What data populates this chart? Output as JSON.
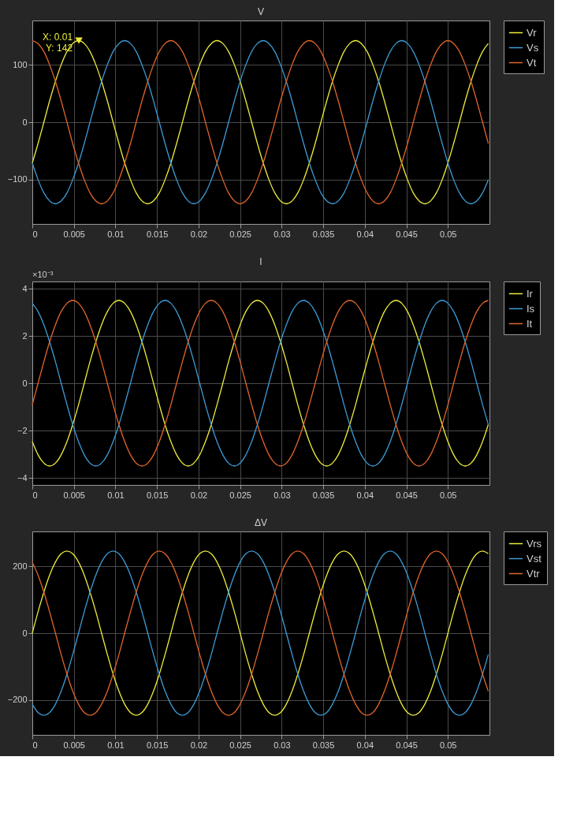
{
  "chart_data": [
    {
      "type": "line",
      "title": "V",
      "grid": true,
      "legend": "right",
      "xlim": [
        0,
        0.055
      ],
      "xticks": [
        0,
        0.005,
        0.01,
        0.015,
        0.02,
        0.025,
        0.03,
        0.035,
        0.04,
        0.045,
        0.05
      ],
      "ylim": [
        -177,
        177
      ],
      "yticks": [
        -100,
        0,
        100
      ],
      "x": [
        0,
        0.00069,
        0.00139,
        0.00208,
        0.00278,
        0.00347,
        0.00417,
        0.00486,
        0.00556,
        0.00625,
        0.00694,
        0.00764,
        0.00833,
        0.00903,
        0.00972,
        0.01042,
        0.01111,
        0.01181,
        0.0125,
        0.01319,
        0.01389,
        0.01458,
        0.01528,
        0.01597,
        0.01667,
        0.01736,
        0.01806,
        0.01875,
        0.01944,
        0.02014,
        0.02083,
        0.02153,
        0.02222,
        0.02292,
        0.02361,
        0.02431,
        0.025,
        0.02569,
        0.02639,
        0.02708,
        0.02778,
        0.02847,
        0.02917,
        0.02986,
        0.03056,
        0.03125,
        0.03194,
        0.03264,
        0.03333,
        0.03403,
        0.03472,
        0.03542,
        0.03611,
        0.03681,
        0.0375,
        0.03819,
        0.03889,
        0.03958,
        0.04028,
        0.04097,
        0.04167,
        0.04236,
        0.04306,
        0.04375,
        0.04444,
        0.04514,
        0.04583,
        0.04653,
        0.04722,
        0.04792,
        0.04861,
        0.04931,
        0.05,
        0.05069,
        0.05139,
        0.05208,
        0.05278,
        0.05347,
        0.05417,
        0.05486
      ],
      "series": [
        {
          "name": "Vr",
          "color": "#eded3a",
          "values": [
            -71,
            -37,
            0,
            37,
            71,
            100,
            123,
            137,
            142,
            137,
            123,
            100,
            71,
            37,
            0,
            -37,
            -71,
            -100,
            -123,
            -137,
            -142,
            -137,
            -123,
            -100,
            -71,
            -37,
            0,
            37,
            71,
            100,
            123,
            137,
            142,
            137,
            123,
            100,
            71,
            37,
            0,
            -37,
            -71,
            -100,
            -123,
            -137,
            -142,
            -137,
            -123,
            -100,
            -71,
            -37,
            0,
            37,
            71,
            100,
            123,
            137,
            142,
            137,
            123,
            100,
            71,
            37,
            0,
            -37,
            -71,
            -100,
            -123,
            -137,
            -142,
            -137,
            -123,
            -100,
            -71,
            -37,
            0,
            37,
            71,
            100,
            123,
            137
          ]
        },
        {
          "name": "Vs",
          "color": "#3d9bd6",
          "values": [
            -71,
            -100,
            -123,
            -137,
            -142,
            -137,
            -123,
            -100,
            -71,
            -37,
            0,
            37,
            71,
            100,
            123,
            137,
            142,
            137,
            123,
            100,
            71,
            37,
            0,
            -37,
            -71,
            -100,
            -123,
            -137,
            -142,
            -137,
            -123,
            -100,
            -71,
            -37,
            0,
            37,
            71,
            100,
            123,
            137,
            142,
            137,
            123,
            100,
            71,
            37,
            0,
            -37,
            -71,
            -100,
            -123,
            -137,
            -142,
            -137,
            -123,
            -100,
            -71,
            -37,
            0,
            37,
            71,
            100,
            123,
            137,
            142,
            137,
            123,
            100,
            71,
            37,
            0,
            -37,
            -71,
            -100,
            -123,
            -137,
            -142,
            -137,
            -123,
            -100
          ]
        },
        {
          "name": "Vt",
          "color": "#e0652b",
          "values": [
            142,
            137,
            123,
            100,
            71,
            37,
            0,
            -37,
            -71,
            -100,
            -123,
            -137,
            -142,
            -137,
            -123,
            -100,
            -71,
            -37,
            0,
            37,
            71,
            100,
            123,
            137,
            142,
            137,
            123,
            100,
            71,
            37,
            0,
            -37,
            -71,
            -100,
            -123,
            -137,
            -142,
            -137,
            -123,
            -100,
            -71,
            -37,
            0,
            37,
            71,
            100,
            123,
            137,
            142,
            137,
            123,
            100,
            71,
            37,
            0,
            -37,
            -71,
            -100,
            -123,
            -137,
            -142,
            -137,
            -123,
            -100,
            -71,
            -37,
            0,
            37,
            71,
            100,
            123,
            137,
            142,
            137,
            123,
            100,
            71,
            37,
            0,
            -37
          ]
        }
      ],
      "annotations": [
        {
          "text": "X: 0.01\nY: 142",
          "x": 0.0056,
          "y": 142
        }
      ]
    },
    {
      "type": "line",
      "title": "I",
      "grid": true,
      "legend": "right",
      "xlim": [
        0,
        0.055
      ],
      "xticks": [
        0,
        0.005,
        0.01,
        0.015,
        0.02,
        0.025,
        0.03,
        0.035,
        0.04,
        0.045,
        0.05
      ],
      "ylim": [
        -4.3,
        4.3
      ],
      "yticks": [
        -4,
        -2,
        0,
        2,
        4
      ],
      "x": [
        0,
        0.00069,
        0.00139,
        0.00208,
        0.00278,
        0.00347,
        0.00417,
        0.00486,
        0.00556,
        0.00625,
        0.00694,
        0.00764,
        0.00833,
        0.00903,
        0.00972,
        0.01042,
        0.01111,
        0.01181,
        0.0125,
        0.01319,
        0.01389,
        0.01458,
        0.01528,
        0.01597,
        0.01667,
        0.01736,
        0.01806,
        0.01875,
        0.01944,
        0.02014,
        0.02083,
        0.02153,
        0.02222,
        0.02292,
        0.02361,
        0.02431,
        0.025,
        0.02569,
        0.02639,
        0.02708,
        0.02778,
        0.02847,
        0.02917,
        0.02986,
        0.03056,
        0.03125,
        0.03194,
        0.03264,
        0.03333,
        0.03403,
        0.03472,
        0.03542,
        0.03611,
        0.03681,
        0.0375,
        0.03819,
        0.03889,
        0.03958,
        0.04028,
        0.04097,
        0.04167,
        0.04236,
        0.04306,
        0.04375,
        0.04444,
        0.04514,
        0.04583,
        0.04653,
        0.04722,
        0.04792,
        0.04861,
        0.04931,
        0.05,
        0.05069,
        0.05139,
        0.05208,
        0.05278,
        0.05347,
        0.05417,
        0.05486
      ],
      "series": [
        {
          "name": "Ir",
          "color": "#eded3a",
          "values": [
            -2.47,
            -3.03,
            -3.38,
            -3.5,
            -3.38,
            -3.03,
            -2.47,
            -1.75,
            -0.91,
            0,
            0.91,
            1.75,
            2.47,
            3.03,
            3.38,
            3.5,
            3.38,
            3.03,
            2.47,
            1.75,
            0.91,
            0,
            -0.91,
            -1.75,
            -2.47,
            -3.03,
            -3.38,
            -3.5,
            -3.38,
            -3.03,
            -2.47,
            -1.75,
            -0.91,
            0,
            0.91,
            1.75,
            2.47,
            3.03,
            3.38,
            3.5,
            3.38,
            3.03,
            2.47,
            1.75,
            0.91,
            0,
            -0.91,
            -1.75,
            -2.47,
            -3.03,
            -3.38,
            -3.5,
            -3.38,
            -3.03,
            -2.47,
            -1.75,
            -0.91,
            0,
            0.91,
            1.75,
            2.47,
            3.03,
            3.38,
            3.5,
            3.38,
            3.03,
            2.47,
            1.75,
            0.91,
            0,
            -0.91,
            -1.75,
            -2.47,
            -3.03,
            -3.38,
            -3.5,
            -3.38,
            -3.03,
            -2.47,
            -1.75
          ]
        },
        {
          "name": "Is",
          "color": "#3d9bd6",
          "values": [
            3.38,
            3.03,
            2.47,
            1.75,
            0.91,
            0,
            -0.91,
            -1.75,
            -2.47,
            -3.03,
            -3.38,
            -3.5,
            -3.38,
            -3.03,
            -2.47,
            -1.75,
            -0.91,
            0,
            0.91,
            1.75,
            2.47,
            3.03,
            3.38,
            3.5,
            3.38,
            3.03,
            2.47,
            1.75,
            0.91,
            0,
            -0.91,
            -1.75,
            -2.47,
            -3.03,
            -3.38,
            -3.5,
            -3.38,
            -3.03,
            -2.47,
            -1.75,
            -0.91,
            0,
            0.91,
            1.75,
            2.47,
            3.03,
            3.38,
            3.5,
            3.38,
            3.03,
            2.47,
            1.75,
            0.91,
            0,
            -0.91,
            -1.75,
            -2.47,
            -3.03,
            -3.38,
            -3.5,
            -3.38,
            -3.03,
            -2.47,
            -1.75,
            -0.91,
            0,
            0.91,
            1.75,
            2.47,
            3.03,
            3.38,
            3.5,
            3.38,
            3.03,
            2.47,
            1.75,
            0.91,
            0,
            -0.91,
            -1.75
          ]
        },
        {
          "name": "It",
          "color": "#e0652b",
          "values": [
            -0.91,
            0,
            0.91,
            1.75,
            2.47,
            3.03,
            3.38,
            3.5,
            3.38,
            3.03,
            2.47,
            1.75,
            0.91,
            0,
            -0.91,
            -1.75,
            -2.47,
            -3.03,
            -3.38,
            -3.5,
            -3.38,
            -3.03,
            -2.47,
            -1.75,
            -0.91,
            0,
            0.91,
            1.75,
            2.47,
            3.03,
            3.38,
            3.5,
            3.38,
            3.03,
            2.47,
            1.75,
            0.91,
            0,
            -0.91,
            -1.75,
            -2.47,
            -3.03,
            -3.38,
            -3.5,
            -3.38,
            -3.03,
            -2.47,
            -1.75,
            -0.91,
            0,
            0.91,
            1.75,
            2.47,
            3.03,
            3.38,
            3.5,
            3.38,
            3.03,
            2.47,
            1.75,
            0.91,
            0,
            -0.91,
            -1.75,
            -2.47,
            -3.03,
            -3.38,
            -3.5,
            -3.38,
            -3.03,
            -2.47,
            -1.75,
            -0.91,
            0,
            0.91,
            1.75,
            2.47,
            3.03,
            3.38,
            3.5
          ]
        }
      ],
      "annotations": [
        "×10⁻³"
      ]
    },
    {
      "type": "line",
      "title": "ΔV",
      "grid": true,
      "legend": "right",
      "xlim": [
        0,
        0.055
      ],
      "xticks": [
        0,
        0.005,
        0.01,
        0.015,
        0.02,
        0.025,
        0.03,
        0.035,
        0.04,
        0.045,
        0.05
      ],
      "ylim": [
        -305,
        305
      ],
      "yticks": [
        -200,
        0,
        200
      ],
      "x": [
        0,
        0.00069,
        0.00139,
        0.00208,
        0.00278,
        0.00347,
        0.00417,
        0.00486,
        0.00556,
        0.00625,
        0.00694,
        0.00764,
        0.00833,
        0.00903,
        0.00972,
        0.01042,
        0.01111,
        0.01181,
        0.0125,
        0.01319,
        0.01389,
        0.01458,
        0.01528,
        0.01597,
        0.01667,
        0.01736,
        0.01806,
        0.01875,
        0.01944,
        0.02014,
        0.02083,
        0.02153,
        0.02222,
        0.02292,
        0.02361,
        0.02431,
        0.025,
        0.02569,
        0.02639,
        0.02708,
        0.02778,
        0.02847,
        0.02917,
        0.02986,
        0.03056,
        0.03125,
        0.03194,
        0.03264,
        0.03333,
        0.03403,
        0.03472,
        0.03542,
        0.03611,
        0.03681,
        0.0375,
        0.03819,
        0.03889,
        0.03958,
        0.04028,
        0.04097,
        0.04167,
        0.04236,
        0.04306,
        0.04375,
        0.04444,
        0.04514,
        0.04583,
        0.04653,
        0.04722,
        0.04792,
        0.04861,
        0.04931,
        0.05,
        0.05069,
        0.05139,
        0.05208,
        0.05278,
        0.05347,
        0.05417,
        0.05486
      ],
      "series": [
        {
          "name": "Vrs",
          "color": "#eded3a",
          "values": [
            0,
            64,
            123,
            174,
            213,
            238,
            246,
            238,
            213,
            174,
            123,
            64,
            0,
            -64,
            -123,
            -174,
            -213,
            -238,
            -246,
            -238,
            -213,
            -174,
            -123,
            -64,
            0,
            64,
            123,
            174,
            213,
            238,
            246,
            238,
            213,
            174,
            123,
            64,
            0,
            -64,
            -123,
            -174,
            -213,
            -238,
            -246,
            -238,
            -213,
            -174,
            -123,
            -64,
            0,
            64,
            123,
            174,
            213,
            238,
            246,
            238,
            213,
            174,
            123,
            64,
            0,
            -64,
            -123,
            -174,
            -213,
            -238,
            -246,
            -238,
            -213,
            -174,
            -123,
            -64,
            0,
            64,
            123,
            174,
            213,
            238,
            246,
            238
          ]
        },
        {
          "name": "Vst",
          "color": "#3d9bd6",
          "values": [
            -213,
            -238,
            -246,
            -238,
            -213,
            -174,
            -123,
            -64,
            0,
            64,
            123,
            174,
            213,
            238,
            246,
            238,
            213,
            174,
            123,
            64,
            0,
            -64,
            -123,
            -174,
            -213,
            -238,
            -246,
            -238,
            -213,
            -174,
            -123,
            -64,
            0,
            64,
            123,
            174,
            213,
            238,
            246,
            238,
            213,
            174,
            123,
            64,
            0,
            -64,
            -123,
            -174,
            -213,
            -238,
            -246,
            -238,
            -213,
            -174,
            -123,
            -64,
            0,
            64,
            123,
            174,
            213,
            238,
            246,
            238,
            213,
            174,
            123,
            64,
            0,
            -64,
            -123,
            -174,
            -213,
            -238,
            -246,
            -238,
            -213,
            -174,
            -123,
            -64
          ]
        },
        {
          "name": "Vtr",
          "color": "#e0652b",
          "values": [
            213,
            174,
            123,
            64,
            0,
            -64,
            -123,
            -174,
            -213,
            -238,
            -246,
            -238,
            -213,
            -174,
            -123,
            -64,
            0,
            64,
            123,
            174,
            213,
            238,
            246,
            238,
            213,
            174,
            123,
            64,
            0,
            -64,
            -123,
            -174,
            -213,
            -238,
            -246,
            -238,
            -213,
            -174,
            -123,
            -64,
            0,
            64,
            123,
            174,
            213,
            238,
            246,
            238,
            213,
            174,
            123,
            64,
            0,
            -64,
            -123,
            -174,
            -213,
            -238,
            -246,
            -238,
            -213,
            -174,
            -123,
            -64,
            0,
            64,
            123,
            174,
            213,
            238,
            246,
            238,
            213,
            174,
            123,
            64,
            0,
            -64,
            -123,
            -174
          ]
        }
      ]
    }
  ]
}
